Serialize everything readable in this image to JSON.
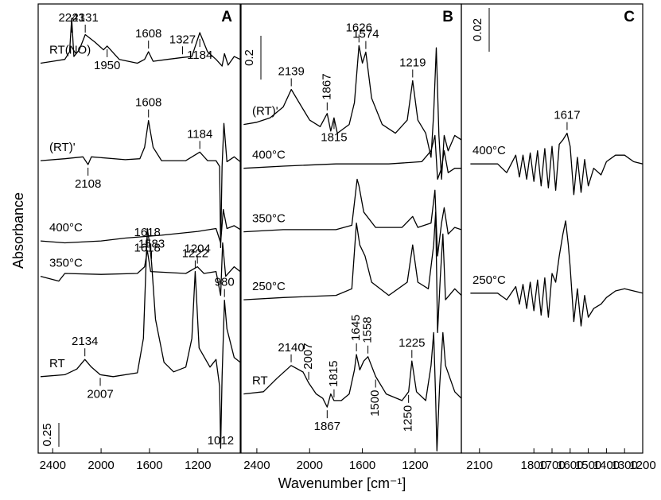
{
  "axis_labels": {
    "x": "Wavenumber [cm⁻¹]",
    "y": "Absorbance"
  },
  "chart_data": [
    {
      "type": "line",
      "label": "A",
      "xlim": [
        2520,
        850
      ],
      "xticks": [
        2400,
        2000,
        1600,
        1200
      ],
      "ylim": [
        0,
        4.7
      ],
      "scale_bar": {
        "value": 0.25
      },
      "series": [
        {
          "name": "RT(NO)",
          "color": "#000000",
          "x": [
            2500,
            2400,
            2300,
            2260,
            2243,
            2225,
            2180,
            2131,
            2050,
            1980,
            1950,
            1850,
            1700,
            1640,
            1608,
            1570,
            1450,
            1327,
            1250,
            1184,
            1120,
            1050,
            1000,
            980,
            950,
            900,
            850
          ],
          "values": [
            4.08,
            4.1,
            4.12,
            4.2,
            4.55,
            4.15,
            4.22,
            4.38,
            4.3,
            4.22,
            4.26,
            4.12,
            4.08,
            4.12,
            4.2,
            4.1,
            4.12,
            4.14,
            4.15,
            4.4,
            4.2,
            4.12,
            4.05,
            4.18,
            4.06,
            4.15,
            4.12
          ],
          "annotations": [
            {
              "value": 2243,
              "position": "above"
            },
            {
              "value": 2131,
              "position": "above"
            },
            {
              "value": 1608,
              "position": "above"
            },
            {
              "value": 1327,
              "position": "above"
            },
            {
              "value": 1950,
              "position": "below"
            },
            {
              "value": 1184,
              "position": "below"
            }
          ]
        },
        {
          "name": "(RT)'",
          "color": "#000000",
          "x": [
            2500,
            2300,
            2150,
            2108,
            2080,
            1800,
            1680,
            1640,
            1608,
            1570,
            1500,
            1300,
            1184,
            1120,
            1050,
            1020,
            1012,
            1000,
            985,
            960,
            900,
            850
          ],
          "values": [
            3.06,
            3.08,
            3.1,
            3.02,
            3.1,
            3.07,
            3.08,
            3.2,
            3.48,
            3.2,
            3.06,
            3.06,
            3.15,
            3.06,
            3.06,
            3.0,
            2.15,
            3.0,
            3.45,
            3.05,
            3.1,
            3.05
          ],
          "annotations": [
            {
              "value": 1608,
              "position": "above"
            },
            {
              "value": 1184,
              "position": "above"
            },
            {
              "value": 2108,
              "position": "below"
            }
          ]
        },
        {
          "name": "400°C",
          "color": "#000000",
          "x": [
            2500,
            2300,
            2000,
            1800,
            1500,
            1200,
            1050,
            1012,
            990,
            960,
            900,
            850
          ],
          "values": [
            2.22,
            2.2,
            2.22,
            2.25,
            2.28,
            2.32,
            2.35,
            2.2,
            2.55,
            2.35,
            2.38,
            2.34
          ],
          "annotations": []
        },
        {
          "name": "350°C",
          "color": "#000000",
          "x": [
            2500,
            2350,
            2300,
            2000,
            1700,
            1640,
            1618,
            1590,
            1300,
            1204,
            1150,
            1050,
            1012,
            995,
            970,
            900,
            850
          ],
          "values": [
            1.85,
            1.8,
            1.88,
            1.87,
            1.88,
            1.95,
            2.12,
            1.9,
            1.88,
            1.95,
            1.88,
            1.9,
            1.65,
            2.2,
            1.85,
            1.95,
            1.9
          ],
          "annotations": [
            {
              "value": 1618,
              "position": "above"
            },
            {
              "value": 1204,
              "position": "above"
            }
          ]
        },
        {
          "name": "RT",
          "color": "#000000",
          "x": [
            2500,
            2300,
            2200,
            2134,
            2080,
            2007,
            1900,
            1700,
            1650,
            1618,
            1600,
            1583,
            1550,
            1480,
            1400,
            1300,
            1250,
            1222,
            1190,
            1100,
            1050,
            1020,
            1012,
            1000,
            980,
            960,
            900,
            850
          ],
          "values": [
            0.8,
            0.82,
            0.88,
            0.98,
            0.9,
            0.82,
            0.8,
            0.84,
            1.2,
            2.35,
            2.2,
            2.0,
            1.4,
            0.95,
            0.85,
            0.9,
            1.2,
            1.9,
            1.1,
            0.9,
            0.98,
            0.7,
            0.05,
            0.8,
            1.6,
            1.3,
            1.0,
            0.95
          ],
          "annotations": [
            {
              "value": 2134,
              "position": "above"
            },
            {
              "value": 1583,
              "position": "above"
            },
            {
              "value": 1222,
              "position": "above"
            },
            {
              "value": 980,
              "position": "above"
            },
            {
              "value": 1618,
              "position": "below"
            },
            {
              "value": 2007,
              "position": "below"
            },
            {
              "value": 1012,
              "position": "below"
            }
          ]
        }
      ]
    },
    {
      "type": "line",
      "label": "B",
      "xlim": [
        2520,
        850
      ],
      "xticks": [
        2400,
        2000,
        1600,
        1200
      ],
      "ylim": [
        0,
        2.05
      ],
      "scale_bar": {
        "value": 0.2
      },
      "series": [
        {
          "name": "(RT)'",
          "color": "#000000",
          "x": [
            2500,
            2400,
            2300,
            2200,
            2139,
            2080,
            2000,
            1920,
            1867,
            1840,
            1815,
            1790,
            1700,
            1660,
            1626,
            1600,
            1574,
            1530,
            1450,
            1350,
            1260,
            1219,
            1180,
            1120,
            1080,
            1060,
            1040,
            1020,
            1000,
            980,
            950,
            900,
            850
          ],
          "values": [
            1.5,
            1.51,
            1.53,
            1.58,
            1.66,
            1.6,
            1.52,
            1.49,
            1.55,
            1.47,
            1.53,
            1.46,
            1.5,
            1.6,
            1.86,
            1.78,
            1.83,
            1.62,
            1.5,
            1.46,
            1.52,
            1.7,
            1.52,
            1.46,
            1.35,
            1.55,
            1.85,
            1.45,
            1.25,
            1.45,
            1.38,
            1.45,
            1.43
          ],
          "annotations": [
            {
              "value": 2139,
              "position": "above"
            },
            {
              "value": 1867,
              "position": "above",
              "orientation": "vertical"
            },
            {
              "value": 1626,
              "position": "above"
            },
            {
              "value": 1574,
              "position": "above"
            },
            {
              "value": 1219,
              "position": "above"
            },
            {
              "value": 1815,
              "position": "below"
            }
          ]
        },
        {
          "name": "400°C",
          "color": "#000000",
          "x": [
            2500,
            2200,
            1800,
            1400,
            1150,
            1080,
            1050,
            1030,
            1000,
            980,
            950,
            900,
            850
          ],
          "values": [
            1.3,
            1.31,
            1.32,
            1.32,
            1.33,
            1.38,
            1.45,
            1.25,
            1.3,
            1.38,
            1.28,
            1.3,
            1.3
          ],
          "annotations": []
        },
        {
          "name": "350°C",
          "color": "#000000",
          "x": [
            2500,
            2200,
            1800,
            1680,
            1640,
            1626,
            1590,
            1500,
            1300,
            1219,
            1180,
            1080,
            1050,
            1030,
            1000,
            980,
            950,
            900,
            850
          ],
          "values": [
            1.01,
            1.02,
            1.02,
            1.04,
            1.25,
            1.22,
            1.1,
            1.03,
            1.03,
            1.08,
            1.03,
            1.05,
            1.2,
            0.9,
            1.05,
            1.12,
            1.0,
            1.03,
            1.02
          ],
          "annotations": []
        },
        {
          "name": "250°C",
          "color": "#000000",
          "x": [
            2500,
            2200,
            1800,
            1680,
            1645,
            1620,
            1580,
            1530,
            1400,
            1260,
            1219,
            1180,
            1100,
            1060,
            1045,
            1030,
            1010,
            990,
            970,
            900,
            850
          ],
          "values": [
            0.7,
            0.71,
            0.72,
            0.75,
            1.05,
            0.95,
            0.9,
            0.78,
            0.72,
            0.78,
            0.95,
            0.78,
            0.75,
            0.95,
            1.1,
            0.55,
            0.8,
            1.0,
            0.7,
            0.75,
            0.72
          ],
          "annotations": []
        },
        {
          "name": "RT",
          "color": "#000000",
          "x": [
            2500,
            2350,
            2250,
            2140,
            2050,
            2007,
            1950,
            1900,
            1867,
            1840,
            1815,
            1760,
            1700,
            1660,
            1645,
            1620,
            1590,
            1558,
            1500,
            1420,
            1300,
            1250,
            1225,
            1190,
            1120,
            1080,
            1060,
            1045,
            1035,
            1015,
            990,
            970,
            900,
            850
          ],
          "values": [
            0.27,
            0.28,
            0.34,
            0.4,
            0.37,
            0.32,
            0.27,
            0.25,
            0.21,
            0.27,
            0.24,
            0.24,
            0.27,
            0.38,
            0.45,
            0.38,
            0.42,
            0.44,
            0.35,
            0.27,
            0.24,
            0.28,
            0.42,
            0.28,
            0.24,
            0.4,
            0.55,
            0.25,
            0.01,
            0.3,
            0.55,
            0.4,
            0.28,
            0.25
          ],
          "annotations": [
            {
              "value": 2140,
              "position": "above"
            },
            {
              "value": 2007,
              "position": "above",
              "orientation": "vertical"
            },
            {
              "value": 1815,
              "position": "above",
              "orientation": "vertical"
            },
            {
              "value": 1645,
              "position": "above",
              "orientation": "vertical"
            },
            {
              "value": 1558,
              "position": "above",
              "orientation": "vertical"
            },
            {
              "value": 1225,
              "position": "above"
            },
            {
              "value": 1867,
              "position": "below"
            },
            {
              "value": 1500,
              "position": "below",
              "orientation": "vertical"
            },
            {
              "value": 1250,
              "position": "below",
              "orientation": "vertical"
            }
          ]
        }
      ]
    },
    {
      "type": "line",
      "label": "C",
      "xlim": [
        2200,
        1200
      ],
      "xticks": [
        2100,
        1800,
        1700,
        1600,
        1500,
        1400,
        1300,
        1200
      ],
      "ylim": [
        0,
        0.205
      ],
      "scale_bar": {
        "value": 0.02
      },
      "series": [
        {
          "name": "400°C",
          "color": "#000000",
          "x": [
            2150,
            2000,
            1950,
            1900,
            1880,
            1860,
            1840,
            1820,
            1800,
            1780,
            1760,
            1740,
            1720,
            1700,
            1680,
            1660,
            1640,
            1617,
            1600,
            1580,
            1560,
            1540,
            1520,
            1500,
            1470,
            1430,
            1400,
            1350,
            1300,
            1250,
            1200
          ],
          "values": [
            0.132,
            0.132,
            0.128,
            0.136,
            0.126,
            0.136,
            0.125,
            0.137,
            0.124,
            0.138,
            0.122,
            0.139,
            0.121,
            0.14,
            0.12,
            0.141,
            0.143,
            0.146,
            0.14,
            0.118,
            0.135,
            0.119,
            0.134,
            0.122,
            0.13,
            0.127,
            0.133,
            0.136,
            0.136,
            0.133,
            0.132
          ],
          "annotations": [
            {
              "value": 1617,
              "position": "above"
            }
          ]
        },
        {
          "name": "250°C",
          "color": "#000000",
          "x": [
            2150,
            2000,
            1950,
            1900,
            1880,
            1860,
            1840,
            1820,
            1800,
            1780,
            1760,
            1740,
            1720,
            1700,
            1680,
            1660,
            1640,
            1625,
            1610,
            1600,
            1580,
            1560,
            1540,
            1520,
            1500,
            1470,
            1430,
            1400,
            1350,
            1300,
            1250,
            1200
          ],
          "values": [
            0.073,
            0.073,
            0.07,
            0.076,
            0.068,
            0.077,
            0.066,
            0.078,
            0.065,
            0.079,
            0.063,
            0.08,
            0.062,
            0.082,
            0.078,
            0.09,
            0.1,
            0.106,
            0.095,
            0.085,
            0.06,
            0.075,
            0.058,
            0.072,
            0.062,
            0.066,
            0.068,
            0.071,
            0.074,
            0.075,
            0.074,
            0.073
          ],
          "annotations": []
        }
      ]
    }
  ]
}
